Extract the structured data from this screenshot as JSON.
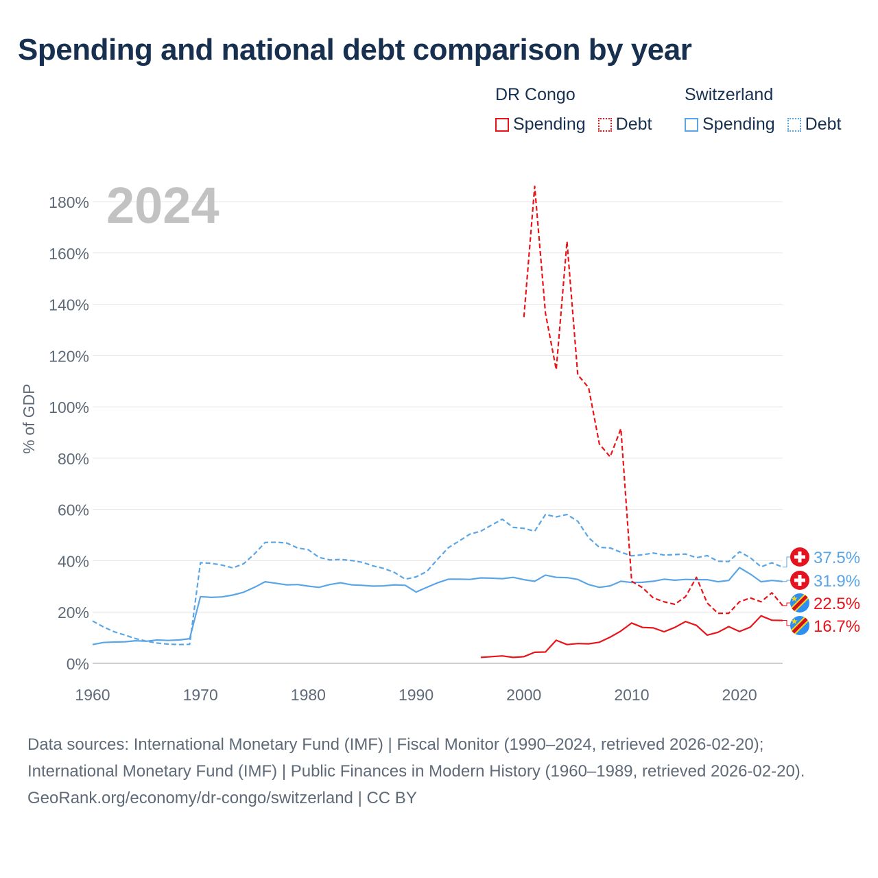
{
  "title": "Spending and national debt comparison by year",
  "legend": {
    "groups": [
      {
        "name": "DR Congo",
        "color": "#e8141a",
        "items": [
          {
            "label": "Spending",
            "style": "solid"
          },
          {
            "label": "Debt",
            "style": "dotted"
          }
        ]
      },
      {
        "name": "Switzerland",
        "color": "#5aa5e6",
        "items": [
          {
            "label": "Spending",
            "style": "solid"
          },
          {
            "label": "Debt",
            "style": "dotted"
          }
        ]
      }
    ]
  },
  "footer": {
    "sources": "Data sources: International Monetary Fund (IMF) | Fiscal Monitor (1990–2024, retrieved 2026-02-20); International Monetary Fund (IMF) | Public Finances in Modern History (1960–1989, retrieved 2026-02-20).",
    "url": "GeoRank.org/economy/dr-congo/switzerland | CC BY"
  },
  "chart_data": {
    "type": "line",
    "year_label": "2024",
    "ylabel": "% of GDP",
    "xlabel": "",
    "xlim": [
      1960,
      2024
    ],
    "ylim": [
      0,
      180
    ],
    "x_ticks": [
      1960,
      1970,
      1980,
      1990,
      2000,
      2010,
      2020
    ],
    "x_tick_labels": [
      "1960",
      "1970",
      "1980",
      "1990",
      "2000",
      "2010",
      "2020"
    ],
    "y_ticks": [
      0,
      20,
      40,
      60,
      80,
      100,
      120,
      140,
      160,
      180
    ],
    "y_tick_labels": [
      "0%",
      "20%",
      "40%",
      "60%",
      "80%",
      "100%",
      "120%",
      "140%",
      "160%",
      "180%"
    ],
    "grid": true,
    "series": [
      {
        "name": "Switzerland Debt",
        "country": "Switzerland",
        "metric": "Debt",
        "color": "#5aa5e6",
        "dash": "dashed",
        "end_label": "37.5%",
        "flag": "switzerland",
        "x": [
          1960,
          1961,
          1962,
          1963,
          1964,
          1965,
          1966,
          1967,
          1968,
          1969,
          1970,
          1971,
          1972,
          1973,
          1974,
          1975,
          1976,
          1977,
          1978,
          1979,
          1980,
          1981,
          1982,
          1983,
          1984,
          1985,
          1986,
          1987,
          1988,
          1989,
          1990,
          1991,
          1992,
          1993,
          1994,
          1995,
          1996,
          1997,
          1998,
          1999,
          2000,
          2001,
          2002,
          2003,
          2004,
          2005,
          2006,
          2007,
          2008,
          2009,
          2010,
          2011,
          2012,
          2013,
          2014,
          2015,
          2016,
          2017,
          2018,
          2019,
          2020,
          2021,
          2022,
          2023,
          2024
        ],
        "values": [
          16.5,
          14.2,
          12.3,
          11.0,
          9.6,
          8.6,
          7.9,
          7.5,
          7.3,
          7.4,
          39.2,
          39.0,
          38.3,
          37.2,
          38.8,
          42.6,
          47.1,
          47.2,
          46.9,
          45.0,
          44.3,
          41.3,
          40.3,
          40.5,
          40.1,
          39.4,
          38.0,
          37.0,
          35.4,
          32.8,
          33.7,
          35.8,
          40.6,
          45.1,
          47.7,
          50.4,
          51.5,
          53.9,
          56.2,
          53.0,
          52.6,
          51.5,
          58.0,
          57.1,
          58.0,
          55.4,
          49.0,
          45.2,
          45.0,
          43.3,
          41.9,
          42.3,
          43.0,
          42.2,
          42.4,
          42.6,
          41.2,
          42.0,
          39.8,
          39.7,
          43.5,
          41.2,
          37.6,
          39.2,
          37.5
        ]
      },
      {
        "name": "Switzerland Spending",
        "country": "Switzerland",
        "metric": "Spending",
        "color": "#5aa5e6",
        "dash": "solid",
        "end_label": "31.9%",
        "flag": "switzerland",
        "x": [
          1960,
          1961,
          1962,
          1963,
          1964,
          1965,
          1966,
          1967,
          1968,
          1969,
          1970,
          1971,
          1972,
          1973,
          1974,
          1975,
          1976,
          1977,
          1978,
          1979,
          1980,
          1981,
          1982,
          1983,
          1984,
          1985,
          1986,
          1987,
          1988,
          1989,
          1990,
          1991,
          1992,
          1993,
          1994,
          1995,
          1996,
          1997,
          1998,
          1999,
          2000,
          2001,
          2002,
          2003,
          2004,
          2005,
          2006,
          2007,
          2008,
          2009,
          2010,
          2011,
          2012,
          2013,
          2014,
          2015,
          2016,
          2017,
          2018,
          2019,
          2020,
          2021,
          2022,
          2023,
          2024
        ],
        "values": [
          7.3,
          8.1,
          8.3,
          8.4,
          8.8,
          8.6,
          9.1,
          8.9,
          9.1,
          9.6,
          26.0,
          25.7,
          25.9,
          26.6,
          27.7,
          29.6,
          31.8,
          31.2,
          30.6,
          30.7,
          30.1,
          29.6,
          30.7,
          31.4,
          30.6,
          30.4,
          30.1,
          30.2,
          30.6,
          30.4,
          27.8,
          29.6,
          31.4,
          32.8,
          32.8,
          32.7,
          33.3,
          33.2,
          33.0,
          33.5,
          32.6,
          32.0,
          34.4,
          33.5,
          33.4,
          32.7,
          30.7,
          29.6,
          30.2,
          32.0,
          31.5,
          31.6,
          32.0,
          32.8,
          32.4,
          32.7,
          32.6,
          32.6,
          31.8,
          32.3,
          37.3,
          34.8,
          31.8,
          32.3,
          31.9
        ]
      },
      {
        "name": "DR Congo Debt",
        "country": "DR Congo",
        "metric": "Debt",
        "color": "#e8141a",
        "dash": "dashed",
        "end_label": "22.5%",
        "flag": "dr-congo",
        "x": [
          2000,
          2001,
          2002,
          2003,
          2004,
          2005,
          2006,
          2007,
          2008,
          2009,
          2010,
          2011,
          2012,
          2013,
          2014,
          2015,
          2016,
          2017,
          2018,
          2019,
          2020,
          2021,
          2022,
          2023,
          2024
        ],
        "values": [
          135.0,
          186.0,
          136.5,
          114.5,
          164.5,
          112.5,
          107.5,
          85.5,
          80.5,
          91.5,
          32.0,
          29.5,
          25.5,
          24.0,
          23.0,
          26.0,
          33.5,
          23.5,
          19.5,
          19.5,
          24.0,
          25.5,
          24.0,
          27.5,
          22.5
        ]
      },
      {
        "name": "DR Congo Spending",
        "country": "DR Congo",
        "metric": "Spending",
        "color": "#e8141a",
        "dash": "solid",
        "end_label": "16.7%",
        "flag": "dr-congo",
        "x": [
          1996,
          1997,
          1998,
          1999,
          2000,
          2001,
          2002,
          2003,
          2004,
          2005,
          2006,
          2007,
          2008,
          2009,
          2010,
          2011,
          2012,
          2013,
          2014,
          2015,
          2016,
          2017,
          2018,
          2019,
          2020,
          2021,
          2022,
          2023,
          2024
        ],
        "values": [
          2.3,
          2.6,
          2.9,
          2.3,
          2.6,
          4.3,
          4.4,
          9.0,
          7.3,
          7.7,
          7.6,
          8.2,
          10.2,
          12.6,
          15.7,
          14.0,
          13.8,
          12.3,
          14.0,
          16.3,
          14.8,
          11.0,
          12.1,
          14.3,
          12.4,
          14.1,
          18.5,
          16.8,
          16.7
        ]
      }
    ]
  }
}
